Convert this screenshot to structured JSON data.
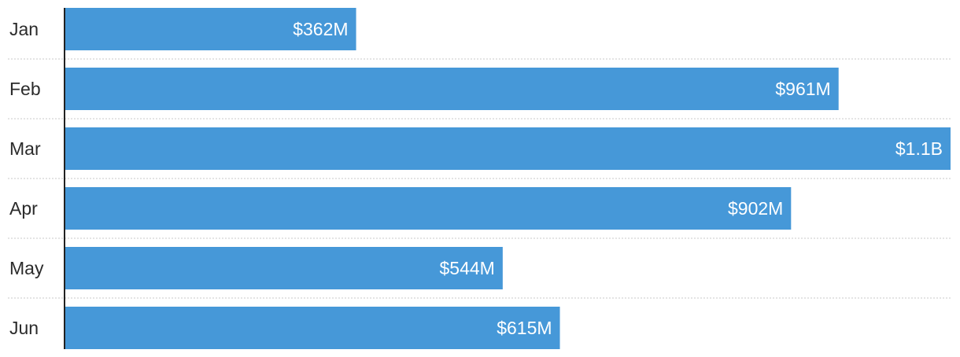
{
  "colors": {
    "bar": "#4698d8",
    "value_text": "#ffffff",
    "category_text": "#2b2b2b",
    "grid": "#c8c8c8",
    "axis": "#222222"
  },
  "chart_data": {
    "type": "bar",
    "orientation": "horizontal",
    "title": "",
    "xlabel": "",
    "ylabel": "",
    "categories": [
      "Jan",
      "Feb",
      "Mar",
      "Apr",
      "May",
      "Jun"
    ],
    "values": [
      362,
      961,
      1100,
      902,
      544,
      615
    ],
    "value_labels": [
      "$362M",
      "$961M",
      "$1.1B",
      "$902M",
      "$544M",
      "$615M"
    ],
    "unit": "$M",
    "xlim": [
      0,
      1100
    ],
    "grid": "dotted horizontal separators between rows",
    "legend": "none"
  }
}
